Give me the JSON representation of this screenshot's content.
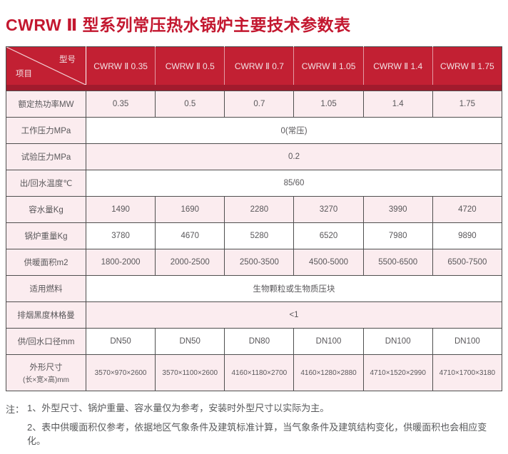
{
  "title": "CWRW Ⅱ 型系列常压热水锅炉主要技术参数表",
  "colors": {
    "header_red": "#c22033",
    "header_strip_dark_red": "#a11b2d",
    "row_pink": "#fbecef",
    "title_red": "#c3172f",
    "border_gray": "#4f4f4f",
    "body_text": "#59575a"
  },
  "table": {
    "corner": {
      "top_right": "型号",
      "bottom_left": "项目"
    },
    "models": [
      "CWRW Ⅱ 0.35",
      "CWRW Ⅱ 0.5",
      "CWRW Ⅱ 0.7",
      "CWRW Ⅱ 1.05",
      "CWRW Ⅱ 1.4",
      "CWRW Ⅱ 1.75"
    ],
    "rows": [
      {
        "label": "额定热功率MW",
        "values": [
          "0.35",
          "0.5",
          "0.7",
          "1.05",
          "1.4",
          "1.75"
        ]
      },
      {
        "label": "工作压力MPa",
        "span": "0(常压)"
      },
      {
        "label": "试验压力MPa",
        "span": "0.2"
      },
      {
        "label": "出/回水温度℃",
        "span": "85/60"
      },
      {
        "label": "容水量Kg",
        "values": [
          "1490",
          "1690",
          "2280",
          "3270",
          "3990",
          "4720"
        ]
      },
      {
        "label": "锅炉重量Kg",
        "values": [
          "3780",
          "4670",
          "5280",
          "6520",
          "7980",
          "9890"
        ]
      },
      {
        "label": "供暖面积m2",
        "values": [
          "1800-2000",
          "2000-2500",
          "2500-3500",
          "4500-5000",
          "5500-6500",
          "6500-7500"
        ]
      },
      {
        "label": "适用燃料",
        "span": "生物颗粒或生物质压块"
      },
      {
        "label": "排烟黑度林格曼",
        "span": "<1"
      },
      {
        "label": "供/回水口径mm",
        "values": [
          "DN50",
          "DN50",
          "DN80",
          "DN100",
          "DN100",
          "DN100"
        ]
      },
      {
        "label": "外形尺寸",
        "label2": "(长×宽×高)mm",
        "values": [
          "3570×970×2600",
          "3570×1100×2600",
          "4160×1180×2700",
          "4160×1280×2880",
          "4710×1520×2990",
          "4710×1700×3180"
        ]
      }
    ]
  },
  "notes": {
    "prefix": "注：",
    "items": [
      "1、外型尺寸、锅炉重量、容水量仅为参考，安装时外型尺寸以实际为主。",
      "2、表中供暖面积仅参考，依据地区气象条件及建筑标准计算，当气象条件及建筑结构变化，供暖面积也会相应变化。"
    ]
  }
}
